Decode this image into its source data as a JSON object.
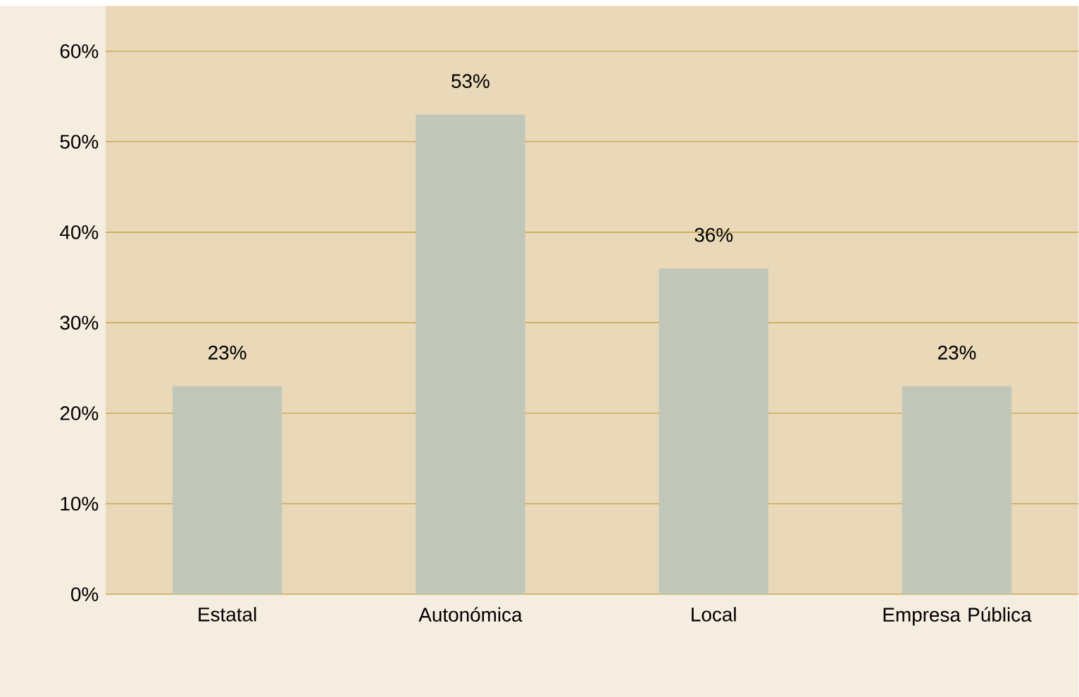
{
  "chart_data": {
    "type": "bar",
    "categories": [
      "Estatal",
      "Autonómica",
      "Local",
      "Empresa Pública"
    ],
    "values": [
      23,
      53,
      36,
      23
    ],
    "color": "#c0c7b9",
    "value_labels": [
      "23%",
      "53%",
      "36%",
      "23%"
    ],
    "ylim": [
      0,
      65
    ],
    "yticks": [
      {
        "value": 0,
        "label": "0%"
      },
      {
        "value": 10,
        "label": "10%"
      },
      {
        "value": 20,
        "label": "20%"
      },
      {
        "value": 30,
        "label": "30%"
      },
      {
        "value": 40,
        "label": "40%"
      },
      {
        "value": 50,
        "label": "50%"
      },
      {
        "value": 60,
        "label": "60%"
      }
    ],
    "grid": "y"
  }
}
